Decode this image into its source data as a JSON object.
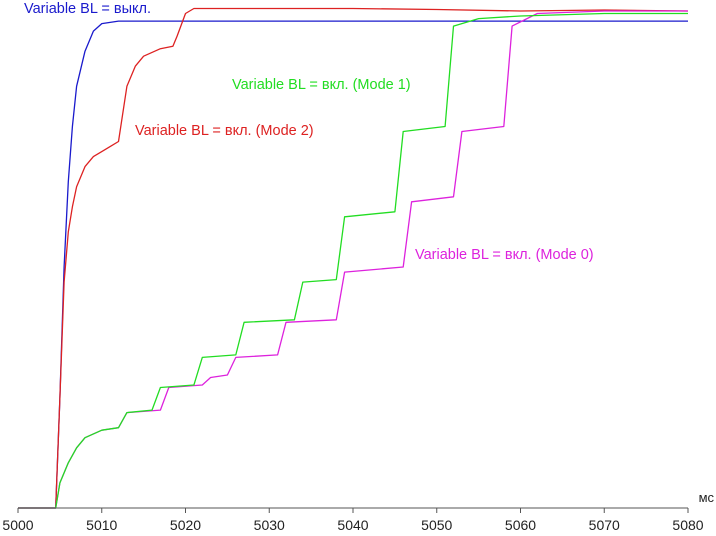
{
  "chart_data": {
    "type": "line",
    "x_unit": "мс",
    "xlim": [
      5000,
      5080
    ],
    "ylim": [
      0,
      1
    ],
    "x_ticks": [
      "5000",
      "5010",
      "5020",
      "5030",
      "5040",
      "5050",
      "5060",
      "5070",
      "5080"
    ],
    "y_ticks_visible": false,
    "grid": false,
    "series": [
      {
        "name": "Variable BL = выкл.",
        "color": "#1a1acc",
        "points": [
          [
            5000,
            0.0
          ],
          [
            5004.5,
            0.0
          ],
          [
            5005,
            0.22
          ],
          [
            5005.5,
            0.48
          ],
          [
            5006,
            0.65
          ],
          [
            5006.5,
            0.76
          ],
          [
            5007,
            0.84
          ],
          [
            5008,
            0.91
          ],
          [
            5009,
            0.95
          ],
          [
            5010,
            0.965
          ],
          [
            5012,
            0.97
          ],
          [
            5015,
            0.97
          ],
          [
            5020,
            0.97
          ],
          [
            5030,
            0.97
          ],
          [
            5040,
            0.97
          ],
          [
            5050,
            0.97
          ],
          [
            5060,
            0.97
          ],
          [
            5070,
            0.97
          ],
          [
            5080,
            0.97
          ]
        ]
      },
      {
        "name": "Variable BL = вкл. (Mode 2)",
        "color": "#dd2222",
        "points": [
          [
            5000,
            0.0
          ],
          [
            5004.5,
            0.0
          ],
          [
            5005,
            0.22
          ],
          [
            5005.5,
            0.45
          ],
          [
            5006,
            0.55
          ],
          [
            5006.5,
            0.6
          ],
          [
            5007,
            0.64
          ],
          [
            5008,
            0.68
          ],
          [
            5009,
            0.7
          ],
          [
            5010,
            0.71
          ],
          [
            5011,
            0.72
          ],
          [
            5012,
            0.73
          ],
          [
            5013,
            0.84
          ],
          [
            5014,
            0.88
          ],
          [
            5015,
            0.9
          ],
          [
            5017,
            0.915
          ],
          [
            5018.5,
            0.92
          ],
          [
            5019,
            0.94
          ],
          [
            5020,
            0.985
          ],
          [
            5021,
            0.995
          ],
          [
            5030,
            0.995
          ],
          [
            5040,
            0.995
          ],
          [
            5050,
            0.993
          ],
          [
            5060,
            0.99
          ],
          [
            5070,
            0.992
          ],
          [
            5080,
            0.99
          ]
        ]
      },
      {
        "name": "Variable BL = вкл. (Mode 1)",
        "color": "#22dd22",
        "points": [
          [
            5000,
            0.0
          ],
          [
            5004.5,
            0.0
          ],
          [
            5005,
            0.05
          ],
          [
            5006,
            0.09
          ],
          [
            5007,
            0.12
          ],
          [
            5008,
            0.14
          ],
          [
            5010,
            0.155
          ],
          [
            5012,
            0.16
          ],
          [
            5013,
            0.19
          ],
          [
            5016,
            0.195
          ],
          [
            5017,
            0.24
          ],
          [
            5021,
            0.245
          ],
          [
            5022,
            0.3
          ],
          [
            5026,
            0.305
          ],
          [
            5027,
            0.37
          ],
          [
            5033,
            0.375
          ],
          [
            5034,
            0.45
          ],
          [
            5038,
            0.455
          ],
          [
            5039,
            0.58
          ],
          [
            5045,
            0.59
          ],
          [
            5046,
            0.75
          ],
          [
            5051,
            0.76
          ],
          [
            5052,
            0.96
          ],
          [
            5055,
            0.975
          ],
          [
            5060,
            0.98
          ],
          [
            5070,
            0.985
          ],
          [
            5080,
            0.985
          ]
        ]
      },
      {
        "name": "Variable BL = вкл. (Mode 0)",
        "color": "#dd22dd",
        "points": [
          [
            5000,
            0.0
          ],
          [
            5004.5,
            0.0
          ],
          [
            5005,
            0.05
          ],
          [
            5006,
            0.09
          ],
          [
            5007,
            0.12
          ],
          [
            5008,
            0.14
          ],
          [
            5010,
            0.155
          ],
          [
            5012,
            0.16
          ],
          [
            5013,
            0.19
          ],
          [
            5017,
            0.195
          ],
          [
            5018,
            0.24
          ],
          [
            5022,
            0.245
          ],
          [
            5023,
            0.26
          ],
          [
            5025,
            0.265
          ],
          [
            5026,
            0.3
          ],
          [
            5031,
            0.305
          ],
          [
            5032,
            0.37
          ],
          [
            5038,
            0.375
          ],
          [
            5039,
            0.47
          ],
          [
            5046,
            0.48
          ],
          [
            5047,
            0.61
          ],
          [
            5052,
            0.62
          ],
          [
            5053,
            0.75
          ],
          [
            5058,
            0.76
          ],
          [
            5059,
            0.96
          ],
          [
            5062,
            0.985
          ],
          [
            5070,
            0.99
          ],
          [
            5080,
            0.99
          ]
        ]
      }
    ]
  }
}
